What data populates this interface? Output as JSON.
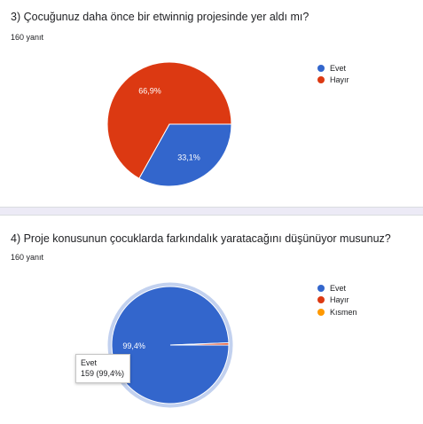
{
  "q3": {
    "title": "3) Çocuğunuz daha önce bir etwinnig projesinde yer aldı mı?",
    "count": "160 yanıt"
  },
  "q4": {
    "title": "4) Proje konusunun çocuklarda farkındalık yaratacağını düşünüyor musunuz?",
    "count": "160 yanıt",
    "tooltip": {
      "label": "Evet",
      "value": "159 (99,4%)"
    }
  },
  "chart_data": [
    {
      "type": "pie",
      "title": "3) Çocuğunuz daha önce bir etwinnig projesinde yer aldı mı?",
      "slices": [
        {
          "label": "Evet",
          "percent": 33.1,
          "display": "33,1%",
          "color": "#3366cc"
        },
        {
          "label": "Hayır",
          "percent": 66.9,
          "display": "66,9%",
          "color": "#dc3912"
        }
      ],
      "legend_position": "right"
    },
    {
      "type": "pie",
      "title": "4) Proje konusunun çocuklarda farkındalık yaratacağını düşünüyor musunuz?",
      "slices": [
        {
          "label": "Evet",
          "percent": 99.4,
          "display": "99,4%",
          "color": "#3366cc"
        },
        {
          "label": "Hayır",
          "percent": 0.6,
          "display": "",
          "color": "#dc3912"
        },
        {
          "label": "Kısmen",
          "percent": 0.0,
          "display": "",
          "color": "#ff9900"
        }
      ],
      "legend_position": "right",
      "highlighted": "Evet"
    }
  ]
}
